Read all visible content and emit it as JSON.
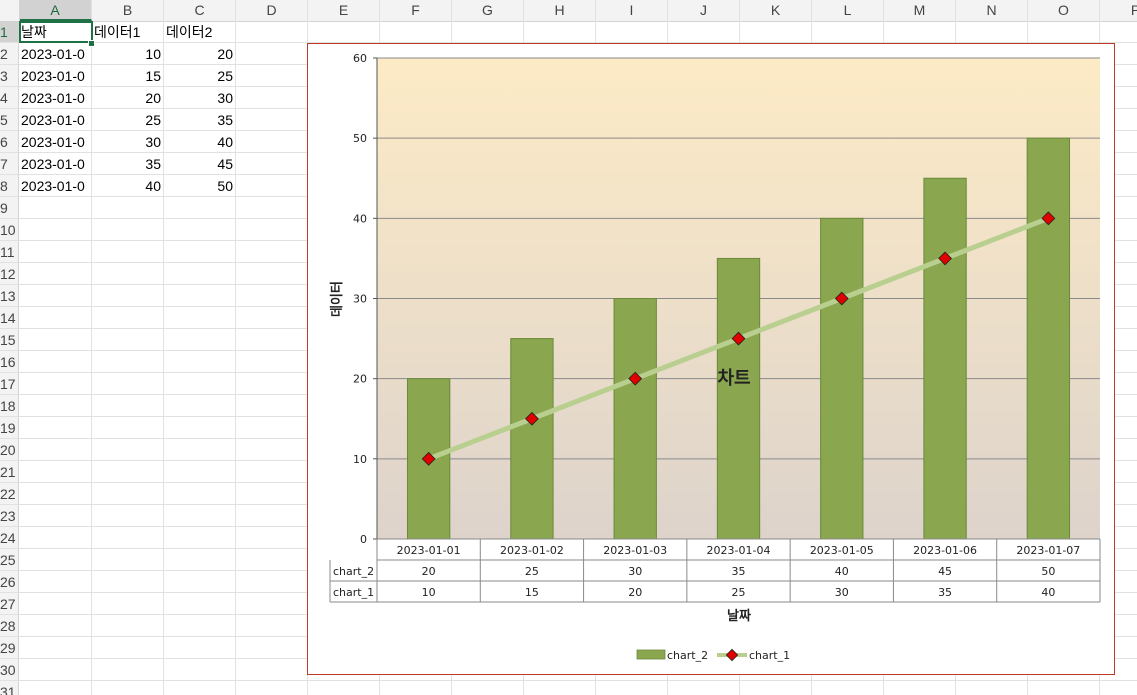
{
  "sheet": {
    "columns": [
      "A",
      "B",
      "C",
      "D",
      "E",
      "F",
      "G",
      "H",
      "I",
      "J",
      "K",
      "L",
      "M",
      "N",
      "O",
      "P"
    ],
    "active_column": "A",
    "active_row": "1",
    "rows": [
      "1",
      "2",
      "3",
      "4",
      "5",
      "6",
      "7",
      "8",
      "9",
      "10",
      "11",
      "12",
      "13",
      "14",
      "15",
      "16",
      "17",
      "18",
      "19",
      "20",
      "21",
      "22",
      "23",
      "24",
      "25",
      "26",
      "27",
      "28",
      "29",
      "30",
      "31"
    ],
    "headers": [
      "날짜",
      "데이터1",
      "데이터2"
    ],
    "data": [
      {
        "date": "2023-01-0",
        "d1": "10",
        "d2": "20"
      },
      {
        "date": "2023-01-0",
        "d1": "15",
        "d2": "25"
      },
      {
        "date": "2023-01-0",
        "d1": "20",
        "d2": "30"
      },
      {
        "date": "2023-01-0",
        "d1": "25",
        "d2": "35"
      },
      {
        "date": "2023-01-0",
        "d1": "30",
        "d2": "40"
      },
      {
        "date": "2023-01-0",
        "d1": "35",
        "d2": "45"
      },
      {
        "date": "2023-01-0",
        "d1": "40",
        "d2": "50"
      }
    ]
  },
  "chart_data": {
    "type": "bar",
    "title": "차트",
    "xlabel": "날짜",
    "ylabel": "데이터",
    "categories": [
      "2023-01-01",
      "2023-01-02",
      "2023-01-03",
      "2023-01-04",
      "2023-01-05",
      "2023-01-06",
      "2023-01-07"
    ],
    "series": [
      {
        "name": "chart_2",
        "type": "bar",
        "values": [
          20,
          25,
          30,
          35,
          40,
          45,
          50
        ],
        "color": "#8aa64f"
      },
      {
        "name": "chart_1",
        "type": "line",
        "values": [
          10,
          15,
          20,
          25,
          30,
          35,
          40
        ],
        "color": "#b9cf8f",
        "marker_color": "#e00000"
      }
    ],
    "ylim": [
      0,
      60
    ],
    "yticks": [
      0,
      10,
      20,
      30,
      40,
      50,
      60
    ],
    "grid": true,
    "legend": "bottom",
    "data_table": true,
    "plot_background": [
      "#fdebc6",
      "#ddd3cb"
    ]
  }
}
